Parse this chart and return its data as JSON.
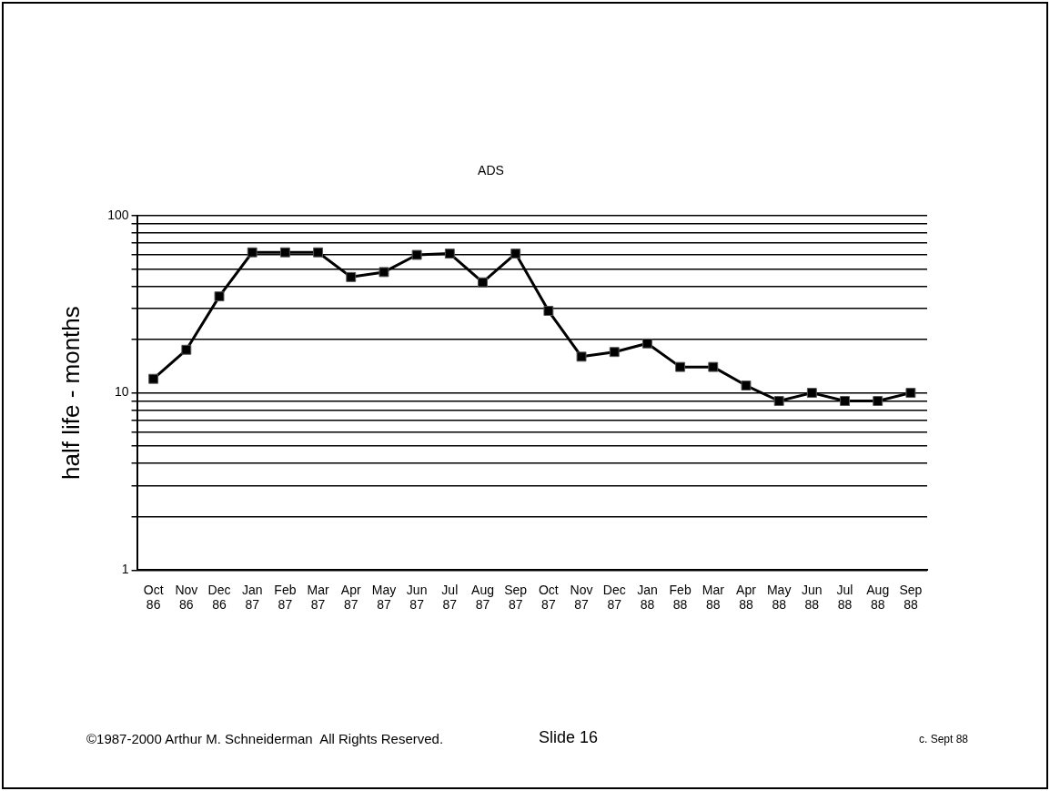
{
  "chart_data": {
    "type": "line",
    "title": "ADS",
    "ylabel": "half life - months",
    "categories": [
      "Oct 86",
      "Nov 86",
      "Dec 86",
      "Jan 87",
      "Feb 87",
      "Mar 87",
      "Apr 87",
      "May 87",
      "Jun 87",
      "Jul 87",
      "Aug 87",
      "Sep 87",
      "Oct 87",
      "Nov 87",
      "Dec 87",
      "Jan 88",
      "Feb 88",
      "Mar 88",
      "Apr 88",
      "May 88",
      "Jun 88",
      "Jul 88",
      "Aug 88",
      "Sep 88"
    ],
    "series": [
      {
        "color": "#000000",
        "values": [
          12,
          17.5,
          35,
          62,
          62,
          62,
          45,
          48,
          60,
          61,
          42,
          61,
          29,
          16,
          17,
          19,
          14,
          14,
          11,
          9,
          10,
          9,
          9,
          10
        ]
      }
    ],
    "log": true,
    "ylim": [
      1,
      100
    ],
    "yticks": [
      1,
      {
        "value": 2,
        "label": null
      },
      {
        "value": 3,
        "label": null
      },
      {
        "value": 4,
        "label": null
      },
      {
        "value": 5,
        "label": null
      },
      {
        "value": 6,
        "label": null
      },
      {
        "value": 7,
        "label": null
      },
      {
        "value": 8,
        "label": null
      },
      {
        "value": 9,
        "label": null
      },
      10,
      {
        "value": 20,
        "label": null
      },
      {
        "value": 30,
        "label": null
      },
      {
        "value": 40,
        "label": null
      },
      {
        "value": 50,
        "label": null
      },
      {
        "value": 60,
        "label": null
      },
      {
        "value": 70,
        "label": null
      },
      {
        "value": 80,
        "label": null
      },
      {
        "value": 90,
        "label": null
      },
      100
    ],
    "grid": "y",
    "legend": false,
    "marker": "square",
    "line_style": "solid",
    "annotations": [
      "©1987-2000 Arthur M. Schneiderman  All Rights Reserved.",
      "Slide 16",
      "c. Sept 88"
    ]
  }
}
